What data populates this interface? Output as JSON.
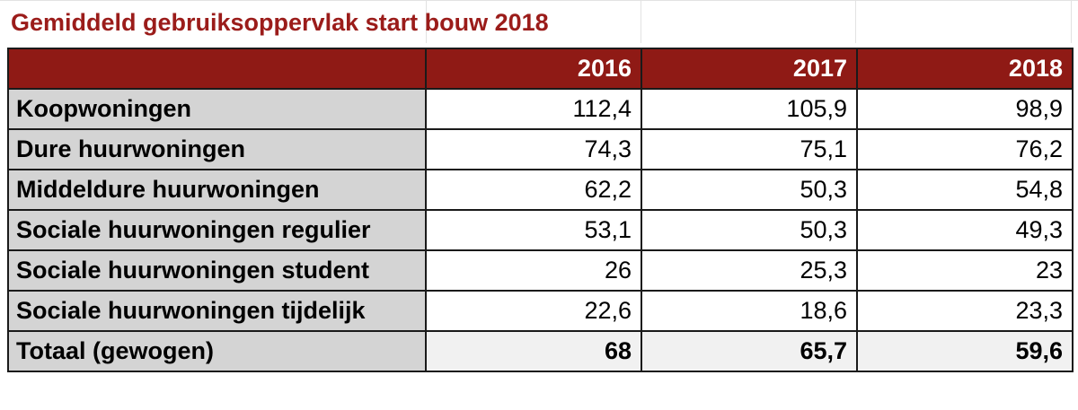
{
  "title": "Gemiddeld gebruiksoppervlak start bouw 2018",
  "colors": {
    "title": "#9b1c1a",
    "header_bg": "#8f1a15",
    "header_text": "#ffffff",
    "label_bg": "#d4d4d4",
    "total_bg": "#f1f1f1"
  },
  "chart_data": {
    "type": "table",
    "title": "Gemiddeld gebruiksoppervlak start bouw 2018",
    "columns": [
      "2016",
      "2017",
      "2018"
    ],
    "rows": [
      {
        "label": "Koopwoningen",
        "values": [
          "112,4",
          "105,9",
          "98,9"
        ]
      },
      {
        "label": "Dure huurwoningen",
        "values": [
          "74,3",
          "75,1",
          "76,2"
        ]
      },
      {
        "label": "Middeldure huurwoningen",
        "values": [
          "62,2",
          "50,3",
          "54,8"
        ]
      },
      {
        "label": "Sociale huurwoningen regulier",
        "values": [
          "53,1",
          "50,3",
          "49,3"
        ]
      },
      {
        "label": "Sociale huurwoningen student",
        "values": [
          "26",
          "25,3",
          "23"
        ]
      },
      {
        "label": "Sociale huurwoningen tijdelijk",
        "values": [
          "22,6",
          "18,6",
          "23,3"
        ]
      },
      {
        "label": "Totaal (gewogen)",
        "values": [
          "68",
          "65,7",
          "59,6"
        ]
      }
    ]
  }
}
